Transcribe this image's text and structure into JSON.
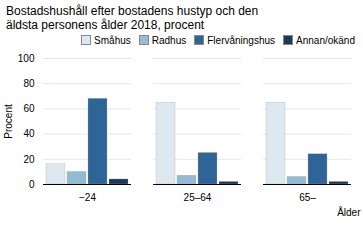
{
  "chart_data": {
    "type": "bar",
    "title": "Bostadshushåll efter bostadens hustyp och den\näldsta personens ålder 2018, procent",
    "x_label": "Ålder",
    "y_label": "Procent",
    "categories": [
      "−24",
      "25–64",
      "65–"
    ],
    "series": [
      {
        "name": "Småhus",
        "color": "#dde8f0",
        "values": [
          16,
          65,
          65
        ]
      },
      {
        "name": "Radhus",
        "color": "#92bcd4",
        "values": [
          10,
          7,
          6
        ]
      },
      {
        "name": "Flervåningshus",
        "color": "#2e6496",
        "values": [
          68,
          25,
          24
        ]
      },
      {
        "name": "Annan/okänd",
        "color": "#1a3a56",
        "values": [
          4,
          2,
          2
        ]
      }
    ],
    "ylim": [
      0,
      100
    ],
    "yticks": [
      0,
      20,
      40,
      60,
      80,
      100
    ],
    "grid": true,
    "legend": "upper right"
  }
}
